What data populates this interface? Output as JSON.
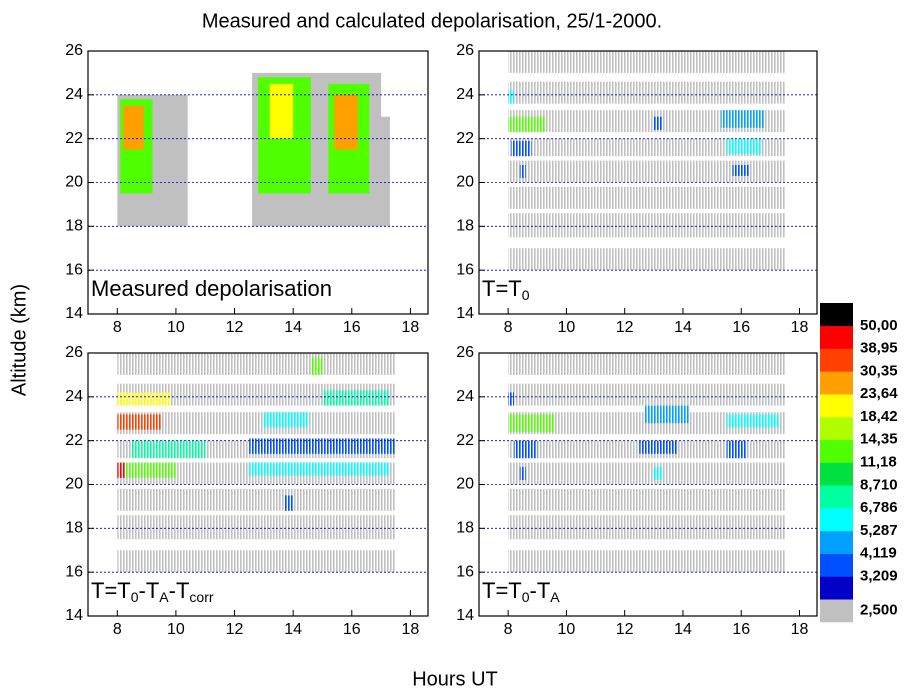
{
  "title": "Measured and calculated depolarisation, 25/1-2000.",
  "xlabel": "Hours UT",
  "ylabel": "Altitude (km)",
  "chart_data": [
    {
      "type": "heatmap",
      "label": [
        "Measured depolarisation"
      ],
      "striped": false,
      "xlim": [
        7,
        18.6
      ],
      "xticks": [
        8,
        10,
        12,
        14,
        16,
        18
      ],
      "ylim": [
        14,
        26
      ],
      "yticks": [
        14,
        16,
        18,
        20,
        22,
        24,
        26
      ],
      "grid": true,
      "cells": [
        {
          "x": [
            8,
            10.4
          ],
          "y": [
            18,
            24
          ],
          "v": 2.5
        },
        {
          "x": [
            8.1,
            9.2
          ],
          "y": [
            19.5,
            23.8
          ],
          "v": 12
        },
        {
          "x": [
            8.2,
            8.9
          ],
          "y": [
            21.5,
            23.5
          ],
          "v": 27
        },
        {
          "x": [
            12.6,
            17
          ],
          "y": [
            18,
            25
          ],
          "v": 2.5
        },
        {
          "x": [
            12.8,
            14.6
          ],
          "y": [
            19.5,
            24.8
          ],
          "v": 12
        },
        {
          "x": [
            13.2,
            14
          ],
          "y": [
            22,
            24.5
          ],
          "v": 20
        },
        {
          "x": [
            15.2,
            16.6
          ],
          "y": [
            19.5,
            24.5
          ],
          "v": 12
        },
        {
          "x": [
            15.4,
            16.2
          ],
          "y": [
            21.5,
            24
          ],
          "v": 27
        },
        {
          "x": [
            16.6,
            17.3
          ],
          "y": [
            18,
            23
          ],
          "v": 2.5
        }
      ]
    },
    {
      "type": "heatmap",
      "label": [
        "T=T",
        "0"
      ],
      "striped": true,
      "xlim": [
        7,
        18.6
      ],
      "xticks": [
        8,
        10,
        12,
        14,
        16,
        18
      ],
      "ylim": [
        14,
        26
      ],
      "yticks": [
        14,
        16,
        18,
        20,
        22,
        24,
        26
      ],
      "grid": true,
      "cells": [
        {
          "x": [
            8,
            17.5
          ],
          "y": [
            16,
            17
          ],
          "v": 2.5
        },
        {
          "x": [
            8,
            17.5
          ],
          "y": [
            17.5,
            18.6
          ],
          "v": 2.5
        },
        {
          "x": [
            8,
            17.5
          ],
          "y": [
            18.8,
            19.8
          ],
          "v": 2.5
        },
        {
          "x": [
            8,
            17.5
          ],
          "y": [
            20,
            21
          ],
          "v": 2.5
        },
        {
          "x": [
            8,
            17.5
          ],
          "y": [
            21.2,
            22
          ],
          "v": 2.5
        },
        {
          "x": [
            8,
            17.5
          ],
          "y": [
            22.3,
            23.3
          ],
          "v": 2.5
        },
        {
          "x": [
            8,
            17.5
          ],
          "y": [
            23.6,
            24.6
          ],
          "v": 2.5
        },
        {
          "x": [
            8,
            17.5
          ],
          "y": [
            25,
            26
          ],
          "v": 2.5
        },
        {
          "x": [
            8,
            9.3
          ],
          "y": [
            22.3,
            23
          ],
          "v": 12
        },
        {
          "x": [
            8,
            8.2
          ],
          "y": [
            23.6,
            24.2
          ],
          "v": 6
        },
        {
          "x": [
            8.1,
            8.8
          ],
          "y": [
            21.2,
            21.9
          ],
          "v": 3.5
        },
        {
          "x": [
            8.4,
            8.6
          ],
          "y": [
            20.2,
            20.8
          ],
          "v": 3.5
        },
        {
          "x": [
            13,
            13.3
          ],
          "y": [
            22.4,
            23
          ],
          "v": 3.5
        },
        {
          "x": [
            15.3,
            16.8
          ],
          "y": [
            22.5,
            23.3
          ],
          "v": 4.5
        },
        {
          "x": [
            15.5,
            16.7
          ],
          "y": [
            21.3,
            22
          ],
          "v": 6
        },
        {
          "x": [
            15.7,
            16.3
          ],
          "y": [
            20.3,
            20.8
          ],
          "v": 3.7
        }
      ]
    },
    {
      "type": "heatmap",
      "label": [
        "T=T",
        "0",
        "-T",
        "A",
        "-T",
        "corr"
      ],
      "striped": true,
      "xlim": [
        7,
        18.6
      ],
      "xticks": [
        8,
        10,
        12,
        14,
        16,
        18
      ],
      "ylim": [
        14,
        26
      ],
      "yticks": [
        14,
        16,
        18,
        20,
        22,
        24,
        26
      ],
      "grid": true,
      "cells": [
        {
          "x": [
            8,
            17.5
          ],
          "y": [
            16,
            17
          ],
          "v": 2.5
        },
        {
          "x": [
            8,
            17.5
          ],
          "y": [
            17.5,
            18.6
          ],
          "v": 2.5
        },
        {
          "x": [
            8,
            17.5
          ],
          "y": [
            18.8,
            19.8
          ],
          "v": 2.5
        },
        {
          "x": [
            8,
            17.5
          ],
          "y": [
            20,
            21
          ],
          "v": 2.5
        },
        {
          "x": [
            8,
            17.5
          ],
          "y": [
            21.2,
            22
          ],
          "v": 2.5
        },
        {
          "x": [
            8,
            17.5
          ],
          "y": [
            22.3,
            23.3
          ],
          "v": 2.5
        },
        {
          "x": [
            8,
            17.5
          ],
          "y": [
            23.6,
            24.6
          ],
          "v": 2.5
        },
        {
          "x": [
            8,
            17.5
          ],
          "y": [
            25,
            26
          ],
          "v": 2.5
        },
        {
          "x": [
            8,
            9.8
          ],
          "y": [
            23.6,
            24.2
          ],
          "v": 20
        },
        {
          "x": [
            8,
            9.5
          ],
          "y": [
            22.5,
            23.2
          ],
          "v": 35
        },
        {
          "x": [
            8,
            8.3
          ],
          "y": [
            20.3,
            21
          ],
          "v": 45
        },
        {
          "x": [
            8.3,
            10
          ],
          "y": [
            20.3,
            21
          ],
          "v": 12
        },
        {
          "x": [
            8.5,
            11
          ],
          "y": [
            21.2,
            22
          ],
          "v": 7.5
        },
        {
          "x": [
            12.5,
            17.5
          ],
          "y": [
            21.4,
            22.1
          ],
          "v": 3.7
        },
        {
          "x": [
            13,
            14.5
          ],
          "y": [
            22.6,
            23.3
          ],
          "v": 6
        },
        {
          "x": [
            14.6,
            15
          ],
          "y": [
            25,
            25.8
          ],
          "v": 12
        },
        {
          "x": [
            15,
            17.3
          ],
          "y": [
            23.6,
            24.3
          ],
          "v": 7.5
        },
        {
          "x": [
            12.5,
            17.3
          ],
          "y": [
            20.4,
            21
          ],
          "v": 5.8
        },
        {
          "x": [
            13.7,
            14
          ],
          "y": [
            18.8,
            19.5
          ],
          "v": 3.5
        }
      ]
    },
    {
      "type": "heatmap",
      "label": [
        "T=T",
        "0",
        "-T",
        "A"
      ],
      "striped": true,
      "xlim": [
        7,
        18.6
      ],
      "xticks": [
        8,
        10,
        12,
        14,
        16,
        18
      ],
      "ylim": [
        14,
        26
      ],
      "yticks": [
        14,
        16,
        18,
        20,
        22,
        24,
        26
      ],
      "grid": true,
      "cells": [
        {
          "x": [
            8,
            17.5
          ],
          "y": [
            16,
            17
          ],
          "v": 2.5
        },
        {
          "x": [
            8,
            17.5
          ],
          "y": [
            17.5,
            18.6
          ],
          "v": 2.5
        },
        {
          "x": [
            8,
            17.5
          ],
          "y": [
            18.8,
            19.8
          ],
          "v": 2.5
        },
        {
          "x": [
            8,
            17.5
          ],
          "y": [
            20,
            21
          ],
          "v": 2.5
        },
        {
          "x": [
            8,
            17.5
          ],
          "y": [
            21.2,
            22
          ],
          "v": 2.5
        },
        {
          "x": [
            8,
            17.5
          ],
          "y": [
            22.3,
            23.3
          ],
          "v": 2.5
        },
        {
          "x": [
            8,
            17.5
          ],
          "y": [
            23.6,
            24.6
          ],
          "v": 2.5
        },
        {
          "x": [
            8,
            17.5
          ],
          "y": [
            25,
            26
          ],
          "v": 2.5
        },
        {
          "x": [
            8,
            9.6
          ],
          "y": [
            22.4,
            23.2
          ],
          "v": 12
        },
        {
          "x": [
            8,
            8.2
          ],
          "y": [
            23.6,
            24.2
          ],
          "v": 3.7
        },
        {
          "x": [
            8.2,
            9
          ],
          "y": [
            21.2,
            22
          ],
          "v": 3.5
        },
        {
          "x": [
            8.4,
            8.6
          ],
          "y": [
            20.2,
            20.8
          ],
          "v": 3.5
        },
        {
          "x": [
            12.7,
            14.2
          ],
          "y": [
            22.8,
            23.6
          ],
          "v": 4.5
        },
        {
          "x": [
            12.5,
            13.8
          ],
          "y": [
            21.4,
            22
          ],
          "v": 3.5
        },
        {
          "x": [
            15.5,
            17.3
          ],
          "y": [
            22.6,
            23.2
          ],
          "v": 6
        },
        {
          "x": [
            15.5,
            16.2
          ],
          "y": [
            21.2,
            22
          ],
          "v": 3.5
        },
        {
          "x": [
            13,
            13.3
          ],
          "y": [
            20.2,
            20.8
          ],
          "v": 6
        }
      ]
    },
    {
      "type": "colorbar",
      "levels": [
        {
          "value": 2.5,
          "label": "2,500"
        },
        {
          "value": 3.209,
          "label": "3,209"
        },
        {
          "value": 4.119,
          "label": "4,119"
        },
        {
          "value": 5.287,
          "label": "5,287"
        },
        {
          "value": 6.786,
          "label": "6,786"
        },
        {
          "value": 8.71,
          "label": "8,710"
        },
        {
          "value": 11.18,
          "label": "11,18"
        },
        {
          "value": 14.35,
          "label": "14,35"
        },
        {
          "value": 18.42,
          "label": "18,42"
        },
        {
          "value": 23.64,
          "label": "23,64"
        },
        {
          "value": 30.35,
          "label": "30,35"
        },
        {
          "value": 38.95,
          "label": "38,95"
        },
        {
          "value": 50.0,
          "label": "50,00"
        }
      ],
      "colors": [
        "#c0c0c0",
        "#0000c8",
        "#0050ff",
        "#00a0ff",
        "#00ffff",
        "#00ffa0",
        "#00e040",
        "#50ff00",
        "#b0ff00",
        "#ffff00",
        "#ffa000",
        "#ff4000",
        "#ff0000",
        "#000000"
      ]
    }
  ]
}
